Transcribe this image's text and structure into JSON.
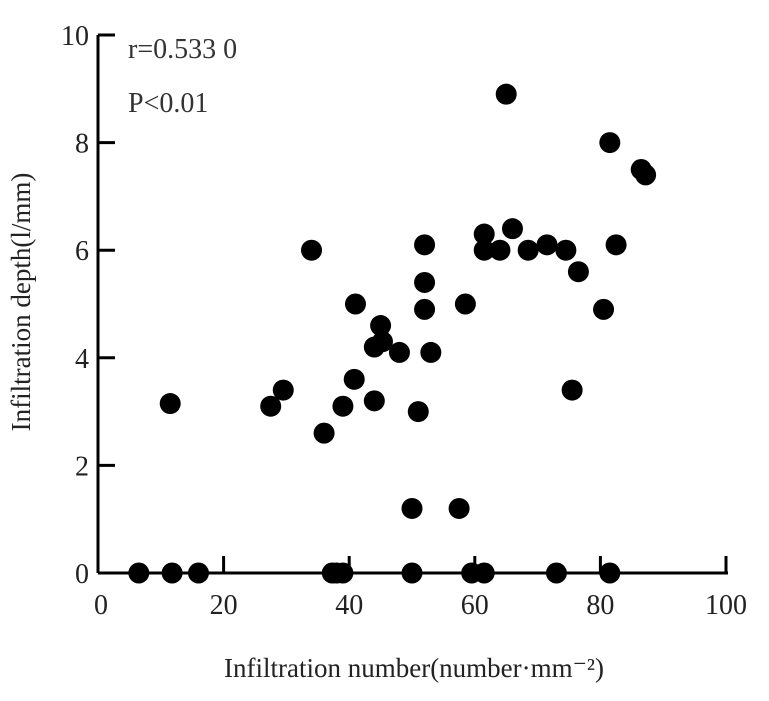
{
  "chart_data": {
    "type": "scatter",
    "xlabel": "Infiltration number(number·mm⁻²)",
    "ylabel": "Infiltration depth(l/mm)",
    "xlim": [
      0,
      100
    ],
    "ylim": [
      0,
      10
    ],
    "x_ticks": [
      "0",
      "20",
      "40",
      "60",
      "80",
      "100"
    ],
    "y_ticks": [
      "0",
      "2",
      "4",
      "6",
      "8",
      "10"
    ],
    "annotations": [
      "r=0.533 0",
      "P<0.01"
    ],
    "grid": false,
    "marker_color": "#000000",
    "points": [
      {
        "x": 6.5,
        "y": 0
      },
      {
        "x": 11.8,
        "y": 0
      },
      {
        "x": 16.0,
        "y": 0
      },
      {
        "x": 11.5,
        "y": 3.15
      },
      {
        "x": 27.5,
        "y": 3.1
      },
      {
        "x": 29.5,
        "y": 3.4
      },
      {
        "x": 34.0,
        "y": 6.0
      },
      {
        "x": 36.0,
        "y": 2.6
      },
      {
        "x": 37.3,
        "y": 0
      },
      {
        "x": 38.0,
        "y": 0
      },
      {
        "x": 39.0,
        "y": 0
      },
      {
        "x": 39.0,
        "y": 3.1
      },
      {
        "x": 40.8,
        "y": 3.6
      },
      {
        "x": 41.0,
        "y": 5.0
      },
      {
        "x": 44.0,
        "y": 3.2
      },
      {
        "x": 44.0,
        "y": 4.2
      },
      {
        "x": 45.0,
        "y": 4.6
      },
      {
        "x": 45.3,
        "y": 4.3
      },
      {
        "x": 48.0,
        "y": 4.1
      },
      {
        "x": 50.0,
        "y": 1.2
      },
      {
        "x": 50.0,
        "y": 0
      },
      {
        "x": 51.0,
        "y": 3.0
      },
      {
        "x": 52.0,
        "y": 6.1
      },
      {
        "x": 52.0,
        "y": 5.4
      },
      {
        "x": 52.0,
        "y": 4.9
      },
      {
        "x": 53.0,
        "y": 4.1
      },
      {
        "x": 57.5,
        "y": 1.2
      },
      {
        "x": 58.5,
        "y": 5.0
      },
      {
        "x": 59.5,
        "y": 0
      },
      {
        "x": 61.5,
        "y": 0
      },
      {
        "x": 61.5,
        "y": 6.3
      },
      {
        "x": 61.5,
        "y": 6.0
      },
      {
        "x": 64.0,
        "y": 6.0
      },
      {
        "x": 65.0,
        "y": 8.9
      },
      {
        "x": 66.0,
        "y": 6.4
      },
      {
        "x": 68.5,
        "y": 6.0
      },
      {
        "x": 71.5,
        "y": 6.1
      },
      {
        "x": 73.0,
        "y": 0
      },
      {
        "x": 74.5,
        "y": 6.0
      },
      {
        "x": 75.5,
        "y": 3.4
      },
      {
        "x": 76.5,
        "y": 5.6
      },
      {
        "x": 80.5,
        "y": 4.9
      },
      {
        "x": 81.5,
        "y": 8.0
      },
      {
        "x": 81.5,
        "y": 0
      },
      {
        "x": 82.5,
        "y": 6.1
      },
      {
        "x": 86.5,
        "y": 7.5
      },
      {
        "x": 87.2,
        "y": 7.4
      }
    ]
  }
}
